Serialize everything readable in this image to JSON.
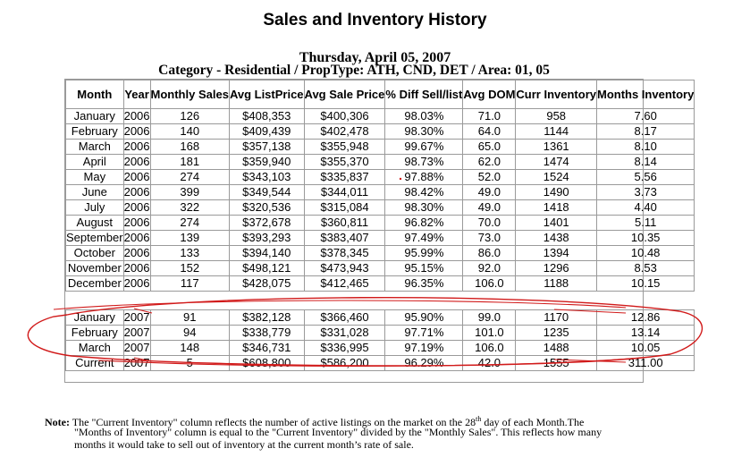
{
  "title": "Sales and Inventory History",
  "date": "Thursday, April 05, 2007",
  "category": "Category - Residential / PropType: ATH, CND, DET / Area: 01, 05",
  "columns": [
    "Month",
    "Year",
    "Monthly Sales",
    "Avg ListPrice",
    "Avg Sale Price",
    "% Diff Sell/list",
    "Avg DOM",
    "Curr Inventory",
    "Months Inventory"
  ],
  "rows_2006": [
    [
      "January",
      "2006",
      "126",
      "$408,353",
      "$400,306",
      "98.03%",
      "71.0",
      "958",
      "7.60"
    ],
    [
      "February",
      "2006",
      "140",
      "$409,439",
      "$402,478",
      "98.30%",
      "64.0",
      "1144",
      "8.17"
    ],
    [
      "March",
      "2006",
      "168",
      "$357,138",
      "$355,948",
      "99.67%",
      "65.0",
      "1361",
      "8.10"
    ],
    [
      "April",
      "2006",
      "181",
      "$359,940",
      "$355,370",
      "98.73%",
      "62.0",
      "1474",
      "8.14"
    ],
    [
      "May",
      "2006",
      "274",
      "$343,103",
      "$335,837",
      "97.88%",
      "52.0",
      "1524",
      "5.56"
    ],
    [
      "June",
      "2006",
      "399",
      "$349,544",
      "$344,011",
      "98.42%",
      "49.0",
      "1490",
      "3.73"
    ],
    [
      "July",
      "2006",
      "322",
      "$320,536",
      "$315,084",
      "98.30%",
      "49.0",
      "1418",
      "4.40"
    ],
    [
      "August",
      "2006",
      "274",
      "$372,678",
      "$360,811",
      "96.82%",
      "70.0",
      "1401",
      "5.11"
    ],
    [
      "September",
      "2006",
      "139",
      "$393,293",
      "$383,407",
      "97.49%",
      "73.0",
      "1438",
      "10.35"
    ],
    [
      "October",
      "2006",
      "133",
      "$394,140",
      "$378,345",
      "95.99%",
      "86.0",
      "1394",
      "10.48"
    ],
    [
      "November",
      "2006",
      "152",
      "$498,121",
      "$473,943",
      "95.15%",
      "92.0",
      "1296",
      "8.53"
    ],
    [
      "December",
      "2006",
      "117",
      "$428,075",
      "$412,465",
      "96.35%",
      "106.0",
      "1188",
      "10.15"
    ]
  ],
  "rows_2007": [
    [
      "January",
      "2007",
      "91",
      "$382,128",
      "$366,460",
      "95.90%",
      "99.0",
      "1170",
      "12.86"
    ],
    [
      "February",
      "2007",
      "94",
      "$338,779",
      "$331,028",
      "97.71%",
      "101.0",
      "1235",
      "13.14"
    ],
    [
      "March",
      "2007",
      "148",
      "$346,731",
      "$336,995",
      "97.19%",
      "106.0",
      "1488",
      "10.05"
    ],
    [
      "Current",
      "2007",
      "5",
      "$608,800",
      "$586,200",
      "96.29%",
      "42.0",
      "1555",
      "311.00"
    ]
  ],
  "note": {
    "label": "Note:",
    "line1_a": "The \"Current Inventory\" column reflects the number of active listings on the market on the 28",
    "line1_sup": "th",
    "line1_b": " day of each Month.The",
    "line2": "\"Months of Inventory\" column is equal to the \"Current Inventory\" divided by the \"Monthly Sales\". This reflects how many",
    "line3": "months it would take to sell out of inventory at the current month’s rate of sale."
  },
  "colors": {
    "annotation": "#d11a1a",
    "border": "#9a9a9a"
  }
}
